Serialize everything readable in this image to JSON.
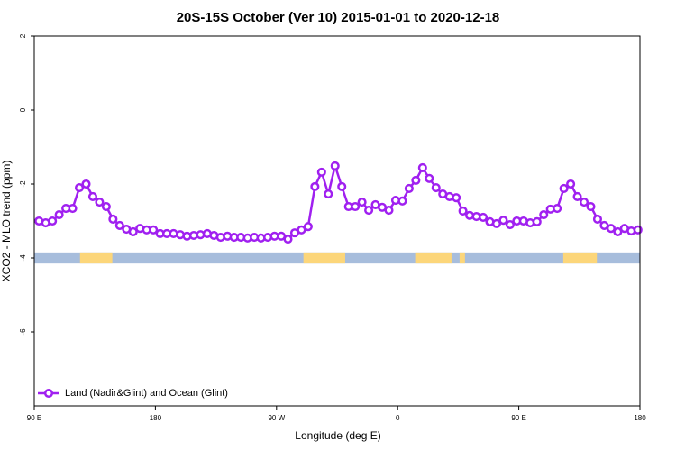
{
  "chart_data": {
    "type": "line",
    "title": "20S-15S October (Ver 10)   2015-01-01 to 2020-12-18",
    "xlabel": "Longitude (deg E)",
    "ylabel": "XCO2 - MLO trend (ppm)",
    "xlim": [
      90,
      540
    ],
    "ylim": [
      -8,
      2
    ],
    "xticks": [
      {
        "value": 90,
        "label": "90 E"
      },
      180,
      {
        "value": 270,
        "label": "90 W"
      },
      {
        "value": 360,
        "label": "0"
      },
      {
        "value": 450,
        "label": "90 E"
      },
      {
        "value": 540,
        "label": "180"
      }
    ],
    "yticks": [
      -6,
      -4,
      -2,
      0,
      2
    ],
    "legend": "bottom-left",
    "surface_strip": {
      "y": [
        -4.15,
        -3.85
      ],
      "ocean_color": "#a7bddc",
      "land_color": "#fcd67a",
      "land": [
        [
          124,
          148
        ],
        [
          290,
          321
        ],
        [
          373,
          400
        ],
        [
          406,
          410
        ],
        [
          483,
          508
        ]
      ]
    },
    "x": [
      93.5,
      98.5,
      103.5,
      108.5,
      113.5,
      118.5,
      123.5,
      128.5,
      133.5,
      138.5,
      143.5,
      148.5,
      153.5,
      158.5,
      163.5,
      168.5,
      173.5,
      178.5,
      183.5,
      188.5,
      193.5,
      198.5,
      203.5,
      208.5,
      213.5,
      218.5,
      223.5,
      228.5,
      233.5,
      238.5,
      243.5,
      248.5,
      253.5,
      258.5,
      263.5,
      268.5,
      273.5,
      278.5,
      283.5,
      288.5,
      293.5,
      298.5,
      303.5,
      308.5,
      313.5,
      318.5,
      323.5,
      328.5,
      333.5,
      338.5,
      343.5,
      348.5,
      353.5,
      358.5,
      363.5,
      368.5,
      373.5,
      378.5,
      383.5,
      388.5,
      393.5,
      398.5,
      403.5,
      408.5,
      413.5,
      418.5,
      423.5,
      428.5,
      433.5,
      438.5,
      443.5,
      448.5,
      453.5,
      458.5,
      463.5,
      468.5,
      473.5,
      478.5,
      483.5,
      488.5,
      493.5,
      498.5,
      503.5,
      508.5,
      513.5,
      518.5,
      523.5,
      528.5,
      533.5,
      538.5
    ],
    "series": [
      {
        "name": "Land (Nadir&Glint) and Ocean (Glint)",
        "color": "#a020f0",
        "values": [
          -3.0,
          -3.05,
          -3.0,
          -2.83,
          -2.66,
          -2.66,
          -2.1,
          -2.0,
          -2.34,
          -2.49,
          -2.61,
          -2.95,
          -3.12,
          -3.22,
          -3.29,
          -3.2,
          -3.24,
          -3.24,
          -3.34,
          -3.34,
          -3.34,
          -3.37,
          -3.41,
          -3.39,
          -3.37,
          -3.34,
          -3.39,
          -3.44,
          -3.41,
          -3.44,
          -3.44,
          -3.46,
          -3.44,
          -3.46,
          -3.44,
          -3.41,
          -3.41,
          -3.49,
          -3.32,
          -3.24,
          -3.15,
          -2.07,
          -1.68,
          -2.27,
          -1.51,
          -2.07,
          -2.61,
          -2.61,
          -2.49,
          -2.71,
          -2.56,
          -2.63,
          -2.71,
          -2.44,
          -2.46,
          -2.12,
          -1.9,
          -1.56,
          -1.85,
          -2.1,
          -2.27,
          -2.34,
          -2.37,
          -2.73,
          -2.85,
          -2.88,
          -2.9,
          -3.02,
          -3.07,
          -2.98,
          -3.1,
          -3.0,
          -3.0,
          -3.05,
          -3.02,
          -2.83,
          -2.68,
          -2.66,
          -2.12,
          -2.0,
          -2.34,
          -2.49,
          -2.61,
          -2.95,
          -3.12,
          -3.2,
          -3.29,
          -3.2,
          -3.27,
          -3.24
        ]
      }
    ]
  }
}
